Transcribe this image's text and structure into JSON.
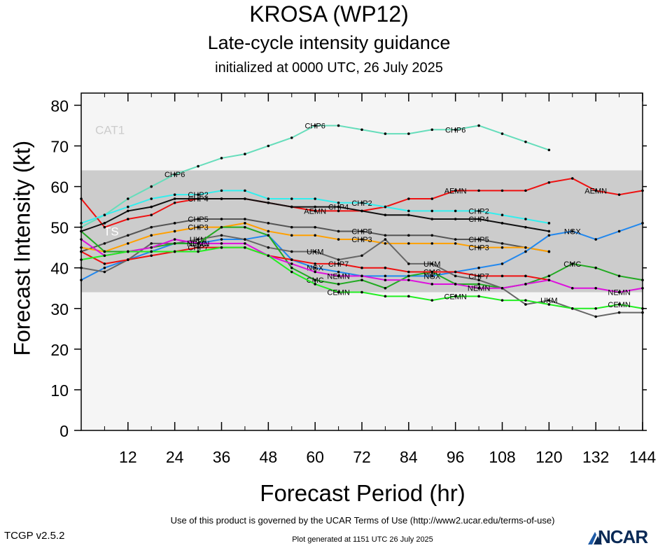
{
  "page": {
    "title": "KROSA (WP12)",
    "subtitle": "Late-cycle intensity guidance",
    "subsubtitle": "initialized at 0000 UTC, 26 July 2025",
    "terms": "Use of this product is governed by the UCAR Terms of Use (http://www2.ucar.edu/terms-of-use)",
    "version": "TCGP v2.5.2",
    "generated": "Plot generated at 1151 UTC   26 July 2025",
    "logo_text": "NCAR"
  },
  "chart_data": {
    "type": "line",
    "title": "KROSA (WP12)",
    "xlabel": "Forecast Period (hr)",
    "ylabel": "Forecast Intensity (kt)",
    "xlim": [
      0,
      144
    ],
    "ylim": [
      0,
      83
    ],
    "xticks": [
      12,
      24,
      36,
      48,
      60,
      72,
      84,
      96,
      108,
      120,
      132,
      144
    ],
    "yticks": [
      0,
      10,
      20,
      30,
      40,
      50,
      60,
      70,
      80
    ],
    "bands": [
      {
        "name": "TS",
        "from": 34,
        "to": 64,
        "color": "#cccccc"
      },
      {
        "name": "CAT1",
        "from": 64,
        "to": 83,
        "color": "#f5f5f5"
      }
    ],
    "series": [
      {
        "name": "CHP6",
        "color": "#66ddbb",
        "x": [
          0,
          6,
          12,
          18,
          24,
          30,
          36,
          42,
          48,
          54,
          60,
          66,
          72,
          78,
          84,
          90,
          96,
          102,
          108,
          114,
          120
        ],
        "y": [
          50,
          53,
          57,
          60,
          63,
          65,
          67,
          68,
          70,
          72,
          75,
          75,
          74,
          73,
          73,
          74,
          74,
          75,
          73,
          71,
          69
        ],
        "labels": [
          [
            24,
            "CHP6"
          ],
          [
            60,
            "CHP6"
          ],
          [
            96,
            "CHP6"
          ]
        ]
      },
      {
        "name": "AEMN",
        "color": "#ee1111",
        "x": [
          0,
          6,
          12,
          18,
          24,
          30,
          36,
          42,
          48,
          54,
          60,
          66,
          72,
          78,
          84,
          90,
          96,
          102,
          108,
          114,
          120,
          126,
          132,
          138,
          144
        ],
        "y": [
          57,
          50,
          52,
          53,
          56,
          57,
          57,
          57,
          56,
          55,
          54,
          54,
          54,
          55,
          57,
          57,
          59,
          59,
          59,
          59,
          61,
          62,
          59,
          58,
          59
        ],
        "labels": [
          [
            60,
            "AEMN"
          ],
          [
            96,
            "AEMN"
          ],
          [
            132,
            "AEMN"
          ]
        ]
      },
      {
        "name": "CHP2",
        "color": "#33eeee",
        "x": [
          0,
          6,
          12,
          18,
          24,
          30,
          36,
          42,
          48,
          54,
          60,
          66,
          72,
          78,
          84,
          90,
          96,
          102,
          108,
          114,
          120
        ],
        "y": [
          51,
          53,
          55,
          57,
          58,
          58,
          59,
          59,
          57,
          57,
          57,
          56,
          56,
          55,
          54,
          54,
          54,
          54,
          53,
          52,
          51
        ],
        "labels": [
          [
            30,
            "CHP2"
          ],
          [
            72,
            "CHP2"
          ],
          [
            102,
            "CHP2"
          ]
        ]
      },
      {
        "name": "CHP4",
        "color": "#111111",
        "x": [
          0,
          6,
          12,
          18,
          24,
          30,
          36,
          42,
          48,
          54,
          60,
          66,
          72,
          78,
          84,
          90,
          96,
          102,
          108,
          114,
          120
        ],
        "y": [
          49,
          51,
          54,
          55,
          57,
          57,
          57,
          57,
          56,
          55,
          55,
          55,
          54,
          53,
          53,
          52,
          52,
          52,
          51,
          50,
          49
        ],
        "labels": [
          [
            30,
            "CHP4"
          ],
          [
            66,
            "CHP4"
          ],
          [
            102,
            "CHP4"
          ]
        ]
      },
      {
        "name": "CHP5",
        "color": "#555555",
        "x": [
          0,
          6,
          12,
          18,
          24,
          30,
          36,
          42,
          48,
          54,
          60,
          66,
          72,
          78,
          84,
          90,
          96,
          102,
          108,
          114,
          120
        ],
        "y": [
          44,
          46,
          48,
          50,
          51,
          52,
          52,
          52,
          51,
          50,
          50,
          49,
          49,
          48,
          48,
          48,
          47,
          47,
          46,
          45,
          44
        ],
        "labels": [
          [
            30,
            "CHP5"
          ],
          [
            72,
            "CHP5"
          ],
          [
            102,
            "CHP5"
          ]
        ]
      },
      {
        "name": "CHP3",
        "color": "#ffa000",
        "x": [
          0,
          6,
          12,
          18,
          24,
          30,
          36,
          42,
          48,
          54,
          60,
          66,
          72,
          78,
          84,
          90,
          96,
          102,
          108,
          114,
          120
        ],
        "y": [
          45,
          44,
          46,
          48,
          49,
          50,
          50,
          51,
          49,
          48,
          48,
          47,
          47,
          46,
          46,
          46,
          46,
          45,
          45,
          45,
          44
        ],
        "labels": [
          [
            30,
            "CHP3"
          ],
          [
            72,
            "CHP3"
          ],
          [
            102,
            "CHP3"
          ]
        ]
      },
      {
        "name": "NGX",
        "color": "#2288ee",
        "x": [
          0,
          6,
          12,
          18,
          24,
          30,
          36,
          42,
          48,
          54,
          60,
          66,
          72,
          78,
          84,
          90,
          96,
          102,
          108,
          114,
          120,
          126,
          132,
          138,
          144
        ],
        "y": [
          37,
          40,
          42,
          44,
          46,
          46,
          47,
          47,
          48,
          42,
          40,
          39,
          38,
          38,
          38,
          38,
          39,
          40,
          41,
          44,
          48,
          49,
          47,
          49,
          51
        ],
        "labels": [
          [
            60,
            "NGX"
          ],
          [
            90,
            "NGX"
          ],
          [
            126,
            "NGX"
          ]
        ]
      },
      {
        "name": "UKM",
        "color": "#666666",
        "x": [
          0,
          6,
          12,
          18,
          24,
          30,
          36,
          42,
          48,
          54,
          60,
          66,
          72,
          78,
          84,
          90,
          96,
          102,
          108,
          114,
          120,
          126,
          132,
          138,
          144
        ],
        "y": [
          40,
          39,
          42,
          46,
          46,
          47,
          48,
          47,
          45,
          44,
          44,
          42,
          43,
          47,
          41,
          41,
          38,
          37,
          35,
          31,
          32,
          30,
          28,
          29,
          29
        ],
        "labels": [
          [
            30,
            "UKM"
          ],
          [
            60,
            "UKM"
          ],
          [
            90,
            "UKM"
          ],
          [
            120,
            "UKM"
          ]
        ]
      },
      {
        "name": "CMC",
        "color": "#22aa22",
        "x": [
          0,
          6,
          12,
          18,
          24,
          30,
          36,
          42,
          48,
          54,
          60,
          66,
          72,
          78,
          84,
          90,
          96,
          102,
          108,
          114,
          120,
          126,
          132,
          138,
          144
        ],
        "y": [
          49,
          44,
          44,
          45,
          46,
          46,
          50,
          50,
          48,
          40,
          37,
          36,
          37,
          35,
          38,
          39,
          36,
          36,
          35,
          36,
          38,
          41,
          40,
          38,
          37
        ],
        "labels": [
          [
            30,
            "CMC"
          ],
          [
            60,
            "CMC"
          ],
          [
            90,
            "CMC"
          ],
          [
            126,
            "CMC"
          ]
        ]
      },
      {
        "name": "CHP7",
        "color": "#ee1111",
        "x": [
          0,
          6,
          12,
          18,
          24,
          30,
          36,
          42,
          48,
          54,
          60,
          66,
          72,
          78,
          84,
          90,
          96,
          102,
          108,
          114,
          120
        ],
        "y": [
          44,
          41,
          42,
          43,
          44,
          45,
          45,
          45,
          43,
          42,
          41,
          41,
          40,
          40,
          39,
          39,
          39,
          38,
          38,
          38,
          37
        ],
        "labels": [
          [
            30,
            "CHP7"
          ],
          [
            66,
            "CHP7"
          ],
          [
            102,
            "CHP7"
          ]
        ]
      },
      {
        "name": "NEMN",
        "color": "#dd11dd",
        "x": [
          0,
          6,
          12,
          18,
          24,
          30,
          36,
          42,
          48,
          54,
          60,
          66,
          72,
          78,
          84,
          90,
          96,
          102,
          108,
          114,
          120,
          126,
          132,
          138,
          144
        ],
        "y": [
          47,
          43,
          44,
          45,
          47,
          46,
          46,
          46,
          43,
          41,
          39,
          38,
          38,
          37,
          37,
          36,
          36,
          35,
          35,
          36,
          37,
          35,
          35,
          34,
          35
        ],
        "labels": [
          [
            30,
            "NEMN"
          ],
          [
            66,
            "NEMN"
          ],
          [
            102,
            "NEMN"
          ],
          [
            138,
            "NEMN"
          ]
        ]
      },
      {
        "name": "CEMN",
        "color": "#22ee22",
        "x": [
          0,
          6,
          12,
          18,
          24,
          30,
          36,
          42,
          48,
          54,
          60,
          66,
          72,
          78,
          84,
          90,
          96,
          102,
          108,
          114,
          120,
          126,
          132,
          138,
          144
        ],
        "y": [
          42,
          43,
          44,
          44,
          44,
          44,
          45,
          45,
          43,
          39,
          36,
          34,
          34,
          33,
          33,
          32,
          33,
          33,
          32,
          32,
          31,
          30,
          30,
          31,
          30
        ],
        "labels": [
          [
            66,
            "CEMN"
          ],
          [
            96,
            "CEMN"
          ],
          [
            138,
            "CEMN"
          ]
        ]
      }
    ]
  }
}
